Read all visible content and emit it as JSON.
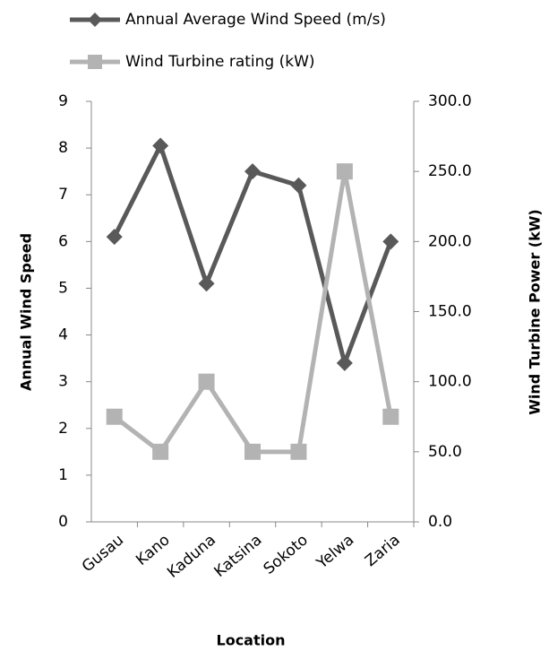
{
  "chart_data": {
    "type": "line",
    "x_label": "Location",
    "y_label": "Annual Wind Speed",
    "y2_label": "Wind Turbine Power (kW)",
    "categories": [
      "Gusau",
      "Kano",
      "Kaduna",
      "Katsina",
      "Sokoto",
      "Yelwa",
      "Zaria"
    ],
    "series": [
      {
        "name": "Annual Average Wind Speed (m/s)",
        "color": "#595959",
        "marker": "diamond",
        "values": [
          6.1,
          8.05,
          5.1,
          7.5,
          7.2,
          3.4,
          6.0
        ]
      },
      {
        "name": "Wind Turbine rating (kW)",
        "color": "#b3b3b3",
        "marker": "square",
        "axis": "y2",
        "values": [
          75,
          50,
          100,
          50,
          50,
          250,
          75
        ]
      }
    ],
    "ylim": [
      0,
      9
    ],
    "yticks": [
      0,
      1,
      2,
      3,
      4,
      5,
      6,
      7,
      8,
      9
    ],
    "y2lim": [
      0,
      300
    ],
    "y2ticks": [
      {
        "value": 0,
        "label": "0.0"
      },
      {
        "value": 50,
        "label": "50.0"
      },
      {
        "value": 100,
        "label": "100.0"
      },
      {
        "value": 150,
        "label": "150.0"
      },
      {
        "value": 200,
        "label": "200.0"
      },
      {
        "value": 250,
        "label": "250.0"
      },
      {
        "value": 300,
        "label": "300.0"
      }
    ],
    "legend": "top"
  }
}
